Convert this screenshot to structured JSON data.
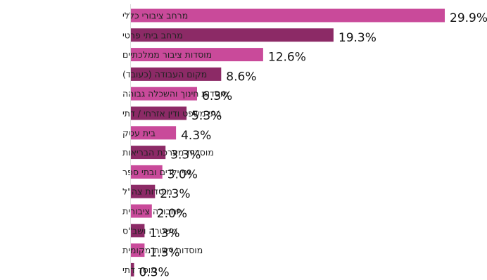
{
  "chart_data": {
    "type": "bar",
    "orientation": "horizontal",
    "categories": [
      "מרחב ציבורי כללי",
      "מרחב ביתי פרטי",
      "מוסדות ציבור ממלכתיים",
      "מקום העבודה (כעובד)",
      "מוסדות חינוך והשכלה גבוהה",
      "בתי משפט ודין אזרחי / דתי",
      "בית עסק",
      "מוסדות מערכת הבריאות",
      "גני ילדים ובתי ספר",
      "מוסדות צה\"ל",
      "תחבורה ציבורית",
      "משטרה ושב\"ס",
      "מוסדות רשות מקומית",
      "מוסד דתי"
    ],
    "values": [
      29.9,
      19.3,
      12.6,
      8.6,
      6.3,
      5.3,
      4.3,
      3.3,
      3.0,
      2.3,
      2.0,
      1.3,
      1.3,
      0.3
    ],
    "value_labels": [
      "29.9%",
      "19.3%",
      "12.6%",
      "8.6%",
      "6.3%",
      "5.3%",
      "4.3%",
      "3.3%",
      "3.0%",
      "2.3%",
      "2.0%",
      "1.3%",
      "1.3%",
      "0.3%"
    ],
    "title": "",
    "xlabel": "",
    "ylabel": "",
    "xlim": [
      0,
      29.9
    ],
    "grid": false,
    "legend": "none",
    "colors": [
      "#c94a9a",
      "#8c2a66"
    ]
  }
}
